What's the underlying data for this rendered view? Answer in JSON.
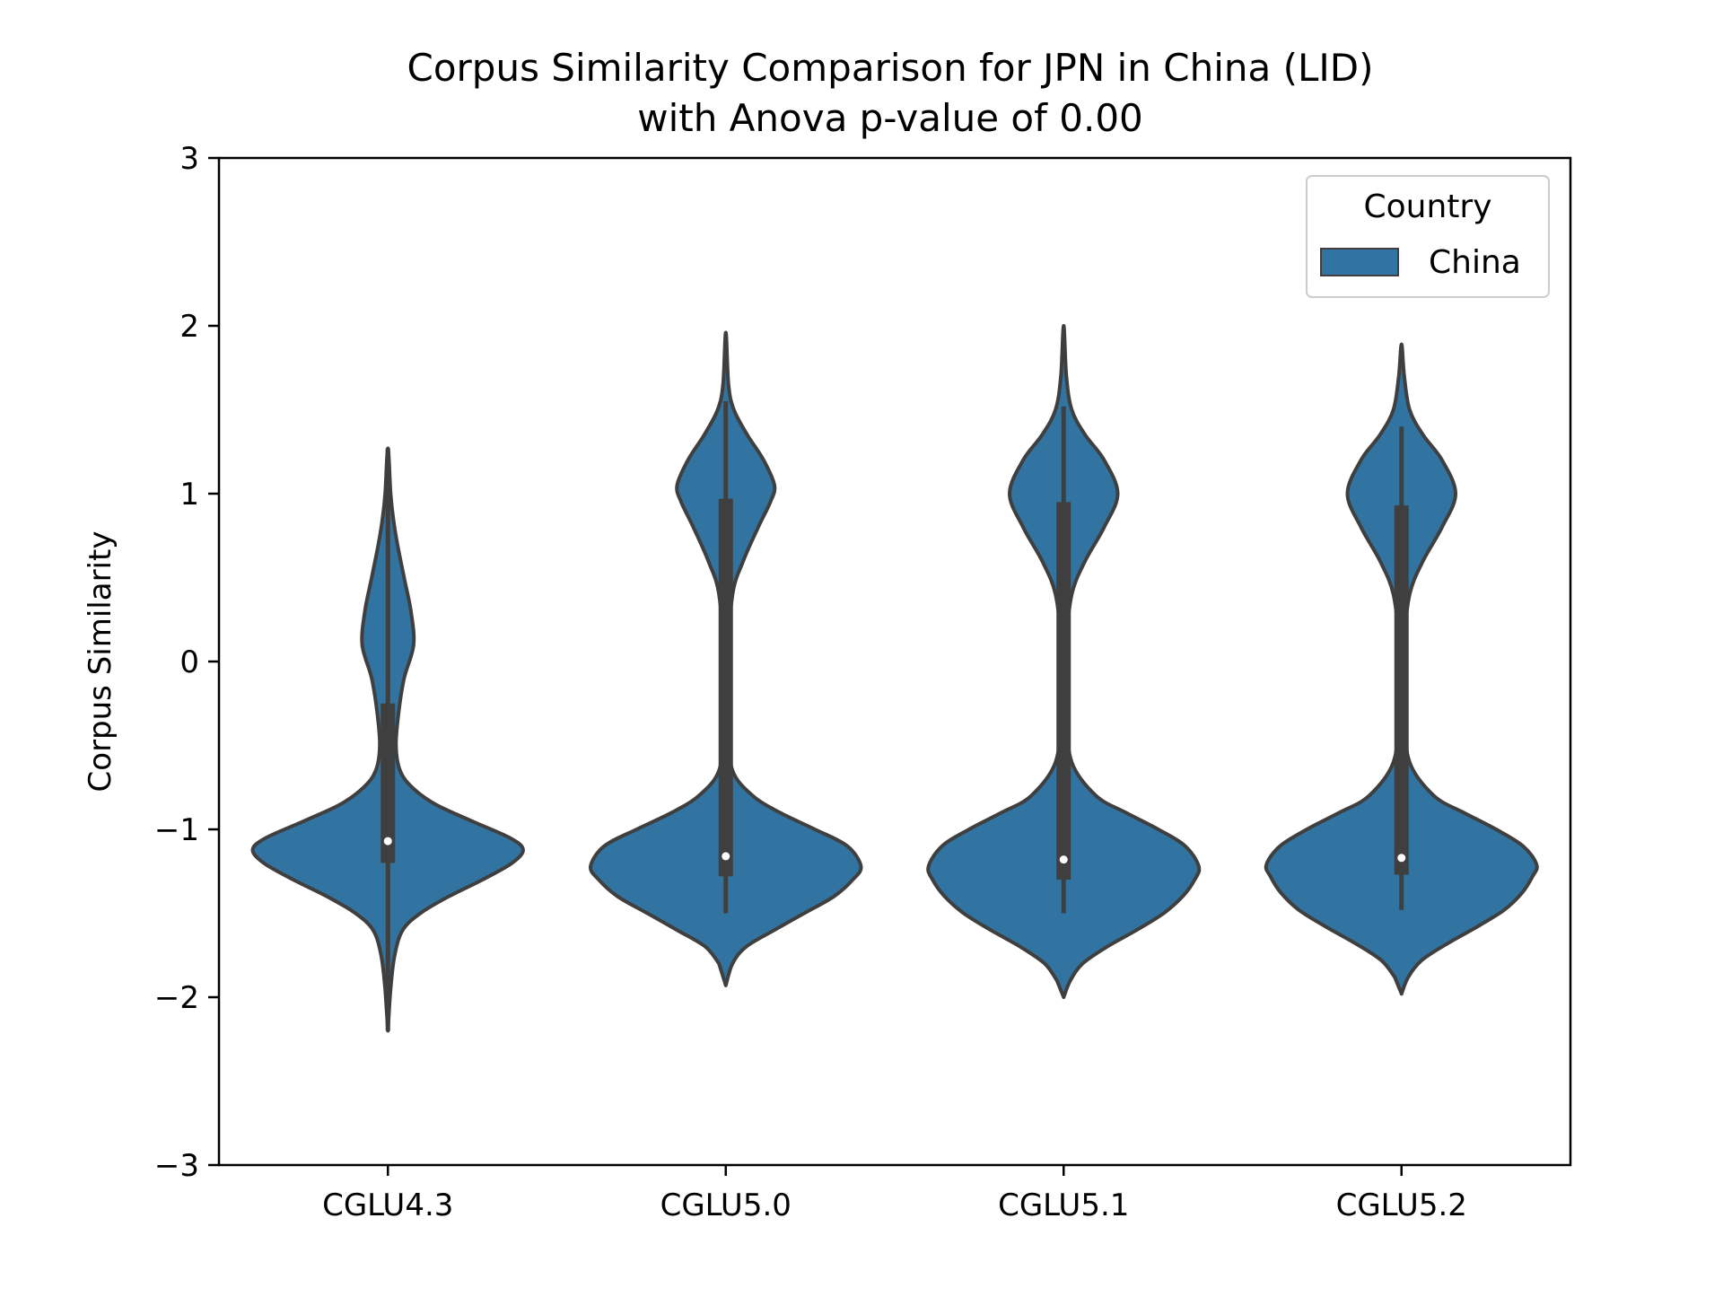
{
  "chart_data": {
    "type": "violin",
    "title_line1": "Corpus Similarity Comparison for JPN in China (LID)",
    "title_line2": "with Anova p-value of 0.00",
    "xlabel": "",
    "ylabel": "Corpus Similarity",
    "ylim": [
      -3,
      3
    ],
    "yticks": [
      -3,
      -2,
      -1,
      0,
      1,
      2,
      3
    ],
    "ytick_labels": [
      "−3",
      "−2",
      "−1",
      "0",
      "1",
      "2",
      "3"
    ],
    "categories": [
      "CGLU4.3",
      "CGLU5.0",
      "CGLU5.1",
      "CGLU5.2"
    ],
    "legend": {
      "title": "Country",
      "position": "top-right",
      "entries": [
        {
          "label": "China",
          "color": "#3274a1"
        }
      ]
    },
    "colors": {
      "fill": "#3274a1",
      "edge": "#3f3f3f",
      "median": "#ffffff"
    },
    "series": [
      {
        "category": "CGLU4.3",
        "min": -2.2,
        "q1": -1.2,
        "median": -1.07,
        "q3": -0.25,
        "max": 1.27,
        "whisker_low": -2.2,
        "whisker_high": 1.27,
        "profile": [
          [
            -2.2,
            0.0
          ],
          [
            -1.95,
            0.02
          ],
          [
            -1.75,
            0.05
          ],
          [
            -1.6,
            0.11
          ],
          [
            -1.5,
            0.24
          ],
          [
            -1.4,
            0.45
          ],
          [
            -1.3,
            0.7
          ],
          [
            -1.2,
            0.92
          ],
          [
            -1.12,
            1.0
          ],
          [
            -1.05,
            0.9
          ],
          [
            -0.95,
            0.62
          ],
          [
            -0.85,
            0.35
          ],
          [
            -0.75,
            0.18
          ],
          [
            -0.65,
            0.09
          ],
          [
            -0.5,
            0.06
          ],
          [
            -0.3,
            0.08
          ],
          [
            -0.1,
            0.12
          ],
          [
            0.1,
            0.19
          ],
          [
            0.3,
            0.17
          ],
          [
            0.5,
            0.12
          ],
          [
            0.7,
            0.07
          ],
          [
            0.85,
            0.04
          ],
          [
            1.0,
            0.02
          ],
          [
            1.27,
            0.0
          ]
        ]
      },
      {
        "category": "CGLU5.0",
        "min": -1.5,
        "q1": -1.28,
        "median": -1.16,
        "q3": 0.97,
        "max": 1.55,
        "whisker_low": -1.5,
        "whisker_high": 1.55,
        "profile": [
          [
            -1.93,
            0.0
          ],
          [
            -1.8,
            0.05
          ],
          [
            -1.7,
            0.15
          ],
          [
            -1.6,
            0.36
          ],
          [
            -1.5,
            0.58
          ],
          [
            -1.4,
            0.8
          ],
          [
            -1.3,
            0.94
          ],
          [
            -1.22,
            1.0
          ],
          [
            -1.1,
            0.9
          ],
          [
            -1.0,
            0.66
          ],
          [
            -0.9,
            0.4
          ],
          [
            -0.8,
            0.2
          ],
          [
            -0.65,
            0.05
          ],
          [
            -0.4,
            0.02
          ],
          [
            0.0,
            0.015
          ],
          [
            0.4,
            0.05
          ],
          [
            0.6,
            0.13
          ],
          [
            0.8,
            0.24
          ],
          [
            0.95,
            0.33
          ],
          [
            1.05,
            0.36
          ],
          [
            1.2,
            0.28
          ],
          [
            1.35,
            0.16
          ],
          [
            1.5,
            0.06
          ],
          [
            1.65,
            0.02
          ],
          [
            1.96,
            0.0
          ]
        ]
      },
      {
        "category": "CGLU5.1",
        "min": -1.5,
        "q1": -1.3,
        "median": -1.18,
        "q3": 0.95,
        "max": 1.52,
        "whisker_low": -1.5,
        "whisker_high": 1.52,
        "profile": [
          [
            -2.0,
            0.0
          ],
          [
            -1.9,
            0.05
          ],
          [
            -1.8,
            0.14
          ],
          [
            -1.7,
            0.32
          ],
          [
            -1.6,
            0.54
          ],
          [
            -1.5,
            0.74
          ],
          [
            -1.4,
            0.88
          ],
          [
            -1.3,
            0.97
          ],
          [
            -1.22,
            1.0
          ],
          [
            -1.1,
            0.9
          ],
          [
            -1.0,
            0.7
          ],
          [
            -0.9,
            0.46
          ],
          [
            -0.8,
            0.24
          ],
          [
            -0.6,
            0.06
          ],
          [
            -0.3,
            0.02
          ],
          [
            0.1,
            0.02
          ],
          [
            0.4,
            0.06
          ],
          [
            0.6,
            0.16
          ],
          [
            0.8,
            0.3
          ],
          [
            1.0,
            0.4
          ],
          [
            1.2,
            0.3
          ],
          [
            1.35,
            0.16
          ],
          [
            1.5,
            0.06
          ],
          [
            1.7,
            0.02
          ],
          [
            2.0,
            0.0
          ]
        ]
      },
      {
        "category": "CGLU5.2",
        "min": -1.48,
        "q1": -1.27,
        "median": -1.17,
        "q3": 0.93,
        "max": 1.4,
        "whisker_low": -1.48,
        "whisker_high": 1.4,
        "profile": [
          [
            -1.98,
            0.0
          ],
          [
            -1.88,
            0.05
          ],
          [
            -1.78,
            0.15
          ],
          [
            -1.68,
            0.34
          ],
          [
            -1.58,
            0.56
          ],
          [
            -1.48,
            0.76
          ],
          [
            -1.38,
            0.89
          ],
          [
            -1.28,
            0.97
          ],
          [
            -1.21,
            1.0
          ],
          [
            -1.1,
            0.9
          ],
          [
            -1.0,
            0.7
          ],
          [
            -0.9,
            0.46
          ],
          [
            -0.8,
            0.24
          ],
          [
            -0.6,
            0.06
          ],
          [
            -0.3,
            0.02
          ],
          [
            0.1,
            0.02
          ],
          [
            0.4,
            0.06
          ],
          [
            0.6,
            0.16
          ],
          [
            0.8,
            0.3
          ],
          [
            1.0,
            0.4
          ],
          [
            1.2,
            0.3
          ],
          [
            1.35,
            0.16
          ],
          [
            1.5,
            0.06
          ],
          [
            1.7,
            0.02
          ],
          [
            1.89,
            0.0
          ]
        ]
      }
    ]
  }
}
